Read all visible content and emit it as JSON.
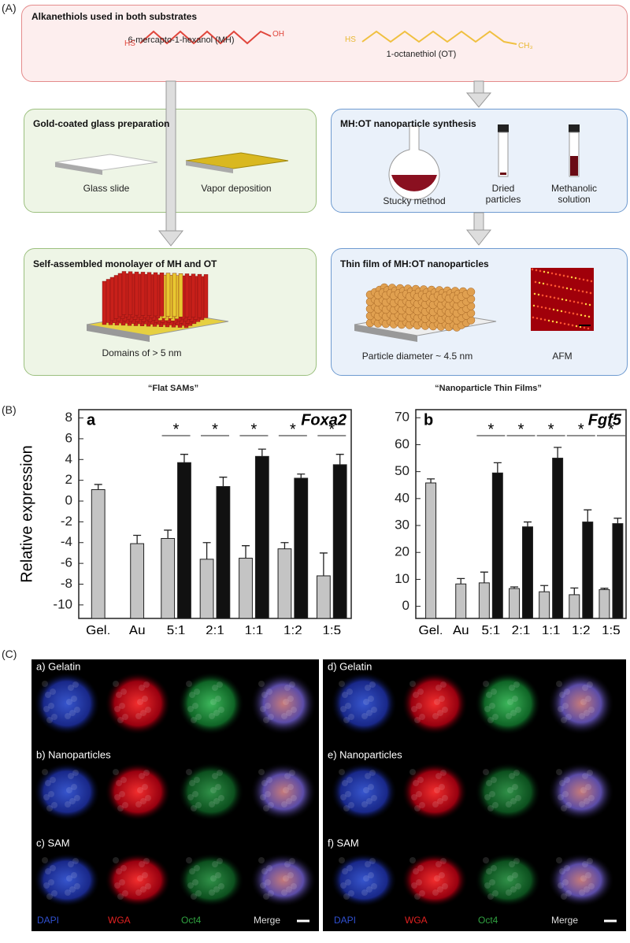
{
  "panel_a": {
    "label": "(A)",
    "alkanethiols": {
      "title": "Alkanethiols used in both substrates",
      "molecules": [
        {
          "name": "6-mercapto-1-hexanol (MH)",
          "left_group": "HS",
          "right_group": "OH"
        },
        {
          "name": "1-octanethiol (OT)",
          "left_group": "HS",
          "right_group": "CH₃"
        }
      ]
    },
    "boxes": [
      {
        "title": "Gold-coated glass preparation",
        "items": [
          "Glass slide",
          "Vapor deposition"
        ]
      },
      {
        "title": "MH:OT nanoparticle synthesis",
        "items": [
          "Stucky method",
          "Dried particles",
          "Methanolic solution"
        ]
      },
      {
        "title": "Self-assembled monolayer of MH and OT",
        "items": [
          "Domains of > 5 nm"
        ]
      },
      {
        "title": "Thin film of MH:OT nanoparticles",
        "items": [
          "Particle diameter ~ 4.5 nm",
          "AFM"
        ]
      }
    ],
    "captions": [
      "“Flat SAMs”",
      "“Nanoparticle Thin Films”"
    ]
  },
  "panel_b_label": "(B)",
  "chart_data": [
    {
      "type": "bar",
      "panel": "a",
      "title": "Foxa2",
      "y_label": "Relative expression",
      "categories": [
        "Gel.",
        "Au",
        "5:1",
        "2:1",
        "1:1",
        "1:2",
        "1:5"
      ],
      "series": [
        {
          "color": "#c4c4c4",
          "values": [
            1.1,
            -4.1,
            -3.6,
            -5.6,
            -5.5,
            -4.6,
            -7.2
          ],
          "errors": [
            0.5,
            0.8,
            0.8,
            1.6,
            1.2,
            0.6,
            2.2
          ]
        },
        {
          "color": "#111111",
          "values": [
            null,
            null,
            3.7,
            1.4,
            4.3,
            2.2,
            3.5
          ],
          "errors": [
            null,
            null,
            0.8,
            0.9,
            0.7,
            0.4,
            1.0
          ]
        }
      ],
      "significance": [
        null,
        null,
        "*",
        "*",
        "*",
        "*",
        "*"
      ],
      "ylim": [
        -11.3,
        8.8
      ],
      "yticks": [
        -10,
        -8,
        -6,
        -4,
        -2,
        0,
        2,
        4,
        6,
        8
      ]
    },
    {
      "type": "bar",
      "panel": "b",
      "title": "Fgf5",
      "categories": [
        "Gel.",
        "Au",
        "5:1",
        "2:1",
        "1:1",
        "1:2",
        "1:5"
      ],
      "series": [
        {
          "color": "#c4c4c4",
          "values": [
            45.8,
            8.3,
            8.7,
            6.6,
            5.4,
            4.3,
            6.2
          ],
          "errors": [
            1.5,
            2.0,
            4.0,
            0.6,
            2.3,
            2.5,
            0.5
          ]
        },
        {
          "color": "#111111",
          "values": [
            null,
            null,
            49.5,
            29.5,
            55,
            31.3,
            30.7
          ],
          "errors": [
            null,
            null,
            3.8,
            1.8,
            4.0,
            4.5,
            2.0
          ]
        }
      ],
      "significance": [
        null,
        null,
        "*",
        "*",
        "*",
        "*",
        "*"
      ],
      "ylim": [
        -4.5,
        73
      ],
      "yticks": [
        0,
        10,
        20,
        30,
        40,
        50,
        60,
        70
      ]
    }
  ],
  "panel_c": {
    "label": "(C)",
    "groups": [
      {
        "rows": [
          "a) Gelatin",
          "b) Nanoparticles",
          "c) SAM"
        ]
      },
      {
        "rows": [
          "d) Gelatin",
          "e) Nanoparticles",
          "f) SAM"
        ]
      }
    ],
    "channels": [
      "DAPI",
      "WGA",
      "Oct4",
      "Merge"
    ]
  }
}
